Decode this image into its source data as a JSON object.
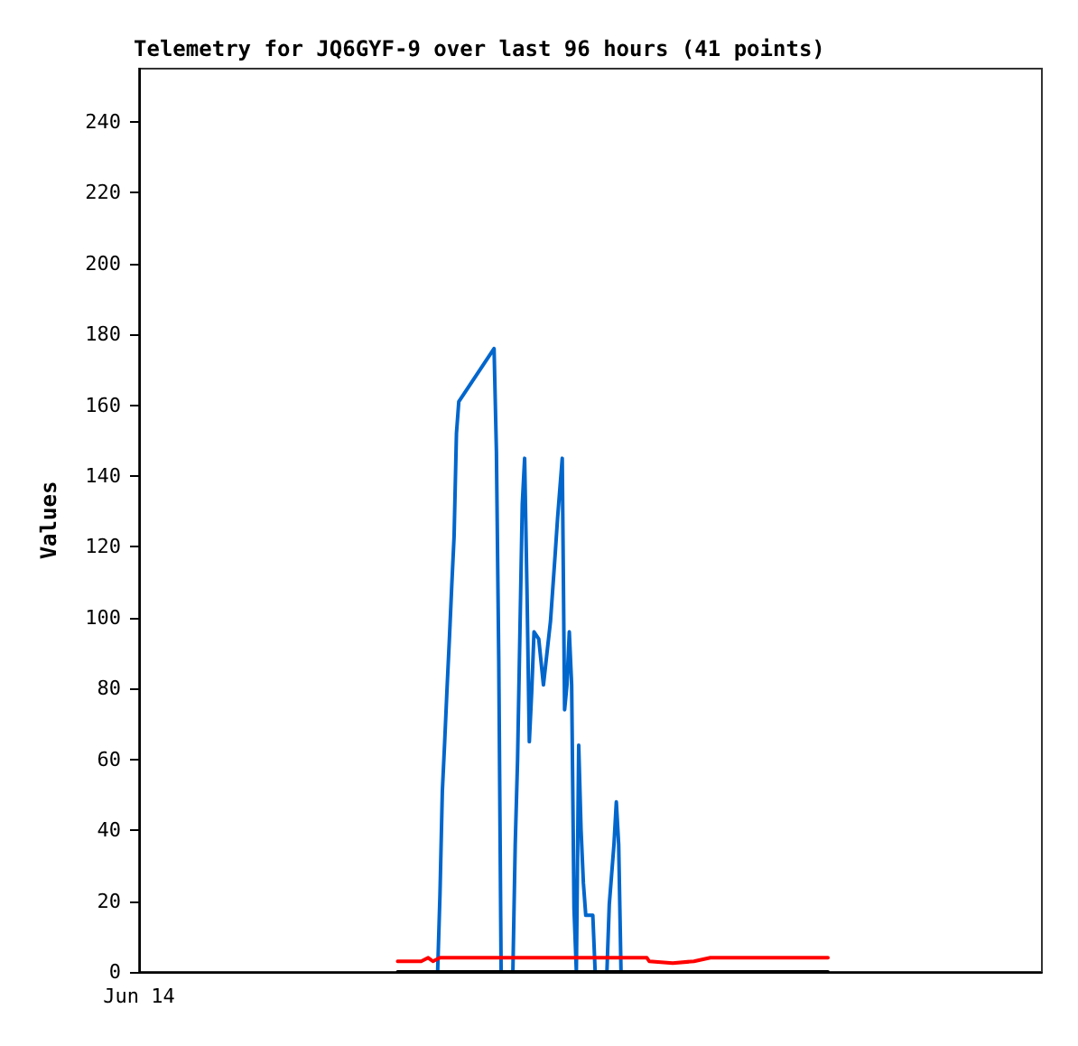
{
  "chart_data": {
    "type": "line",
    "title": "Telemetry for JQ6GYF-9 over last 96 hours (41 points)",
    "ylabel": "Values",
    "ylim": [
      0,
      255
    ],
    "yticks": [
      0,
      20,
      40,
      60,
      80,
      100,
      120,
      140,
      160,
      180,
      200,
      220,
      240
    ],
    "grid": false,
    "marker": "none",
    "line_style": "solid",
    "categories": [
      "Jun 14",
      null,
      null,
      null,
      null,
      null,
      null,
      null,
      null,
      null,
      null,
      null,
      null,
      null,
      null,
      null,
      null,
      null,
      null,
      null,
      null,
      null,
      null,
      null,
      null,
      null,
      null,
      null,
      null,
      null,
      null,
      null,
      null,
      null,
      null,
      null,
      null,
      null,
      null,
      null,
      null,
      null,
      null,
      null,
      null,
      null,
      null,
      null,
      null,
      null,
      null,
      null,
      null,
      null,
      null,
      null,
      null,
      null,
      null,
      null,
      null,
      null,
      null,
      null,
      null,
      null,
      null,
      null,
      null,
      null,
      null,
      null,
      null,
      null,
      null,
      null,
      null,
      null,
      null,
      null,
      null,
      null,
      null,
      null,
      null,
      null,
      null,
      null,
      null,
      null,
      null,
      null,
      null,
      null,
      null,
      null,
      null,
      null,
      null,
      null,
      null,
      null,
      null,
      null,
      null,
      null,
      null,
      null,
      null,
      null,
      null,
      null,
      null,
      null,
      null,
      null,
      null,
      null,
      null,
      null,
      null,
      null,
      null,
      null,
      null,
      null,
      null,
      null,
      null,
      null,
      null,
      null,
      null,
      null,
      null,
      null,
      null,
      null,
      null,
      null,
      null,
      null,
      null,
      null,
      null,
      null,
      null,
      null,
      null,
      null,
      null,
      null,
      null,
      null,
      null,
      null,
      null,
      null,
      null,
      null,
      null,
      null,
      null,
      null,
      null,
      null,
      null,
      null,
      null,
      null,
      null,
      null,
      null,
      null,
      null,
      null,
      null,
      null,
      null,
      null,
      null,
      null,
      null,
      null,
      null,
      null,
      null,
      null,
      null,
      null,
      null,
      null,
      null,
      null,
      null,
      null,
      null,
      null,
      null,
      null,
      null,
      null,
      null,
      null,
      null,
      null,
      null,
      null,
      null,
      null,
      null,
      null,
      null,
      null,
      null,
      null,
      null,
      null,
      null,
      null,
      null,
      null,
      null,
      null,
      null,
      null,
      null,
      null,
      null,
      null,
      null,
      null,
      null,
      null,
      null,
      null,
      null,
      null,
      null,
      null,
      null,
      null,
      null,
      null,
      null,
      null,
      null,
      null,
      null,
      null,
      null,
      null,
      null,
      null,
      null,
      null,
      null,
      null,
      null,
      null,
      null,
      null,
      null,
      null,
      null,
      null,
      null,
      null,
      null,
      null,
      null,
      null,
      null,
      null,
      null,
      null,
      null,
      null,
      null,
      null,
      null,
      null,
      null,
      null,
      null,
      null,
      null,
      null,
      null,
      null,
      null,
      null,
      null,
      null,
      null,
      null,
      null,
      null,
      null,
      null,
      null,
      null,
      null,
      null,
      null,
      null,
      null,
      null,
      null,
      null,
      null,
      null,
      null,
      null,
      null,
      null,
      null,
      null,
      null,
      null,
      null,
      null,
      null,
      null,
      null,
      null,
      null,
      null,
      null,
      null,
      null,
      null,
      null,
      null,
      null,
      null,
      null,
      null,
      null,
      null,
      null,
      null,
      null,
      null,
      null,
      null,
      null,
      null,
      null,
      null,
      null,
      null,
      null,
      null,
      null,
      null,
      null,
      null,
      null,
      null,
      null,
      null,
      null,
      null,
      null,
      null,
      null,
      null,
      null,
      null,
      null,
      null,
      null,
      null,
      null,
      null,
      null,
      null,
      null,
      null,
      null,
      null,
      null,
      null,
      null
    ],
    "series": [
      {
        "color": "#0066cc",
        "values": [
          null,
          null,
          null,
          null,
          null,
          null,
          null,
          null,
          null,
          null,
          null,
          null,
          null,
          null,
          null,
          null,
          null,
          null,
          null,
          null,
          null,
          null,
          null,
          null,
          null,
          null,
          null,
          null,
          null,
          null,
          null,
          null,
          null,
          null,
          null,
          null,
          null,
          null,
          null,
          null,
          null,
          null,
          null,
          null,
          null,
          null,
          null,
          null,
          null,
          null,
          null,
          null,
          null,
          null,
          null,
          null,
          null,
          null,
          null,
          null,
          null,
          null,
          null,
          null,
          null,
          null,
          null,
          null,
          null,
          null,
          null,
          null,
          null,
          null,
          null,
          null,
          null,
          null,
          null,
          null,
          null,
          null,
          null,
          null,
          null,
          null,
          null,
          null,
          null,
          null,
          null,
          null,
          null,
          null,
          null,
          null,
          null,
          null,
          null,
          null,
          null,
          null,
          null,
          null,
          null,
          null,
          null,
          null,
          null,
          null,
          null,
          null,
          null,
          null,
          null,
          null,
          null,
          null,
          null,
          null,
          null,
          null,
          null,
          null,
          null,
          null,
          null,
          0,
          22,
          51,
          65,
          80,
          94,
          109,
          123,
          152,
          161,
          null,
          null,
          null,
          null,
          null,
          null,
          null,
          null,
          null,
          null,
          null,
          null,
          null,
          null,
          176,
          147,
          88,
          0,
          null,
          null,
          null,
          null,
          0,
          36,
          60,
          null,
          132,
          145,
          108,
          65,
          79,
          96,
          null,
          94,
          null,
          81,
          87,
          null,
          99,
          null,
          118,
          128,
          null,
          145,
          74,
          81,
          96,
          81,
          18,
          0,
          64,
          40,
          25,
          16,
          null,
          null,
          16,
          0,
          null,
          null,
          null,
          null,
          0,
          19,
          null,
          36,
          48,
          36,
          0,
          null,
          null,
          null,
          null,
          null,
          null,
          null,
          null,
          null,
          null,
          null,
          null,
          null,
          null,
          null,
          null,
          null,
          null,
          null,
          null,
          null,
          null,
          null,
          null,
          null,
          null,
          null,
          null,
          null,
          null,
          null,
          null,
          null,
          null,
          null,
          null,
          null,
          null,
          null,
          null,
          null,
          null,
          null,
          null,
          null,
          null,
          null,
          null,
          null,
          null,
          null,
          null,
          null,
          null,
          null,
          null,
          null,
          null,
          null,
          null,
          null,
          null,
          null,
          null,
          null,
          null,
          null,
          null,
          null,
          null,
          null,
          null,
          null,
          null,
          null,
          null,
          null,
          null,
          null,
          null,
          null,
          null,
          null,
          null,
          null,
          null,
          null,
          null,
          null,
          null,
          null,
          null,
          null,
          null,
          null,
          null,
          null,
          null,
          null,
          null,
          null,
          null,
          null,
          null,
          null,
          null,
          null,
          null,
          null,
          null,
          null,
          null,
          null,
          null,
          null,
          null,
          null,
          null,
          null,
          null,
          null,
          null,
          null,
          null,
          null,
          null,
          null,
          null,
          null,
          null,
          null,
          null,
          null,
          null,
          null,
          null,
          null,
          null,
          null,
          null,
          null,
          null,
          null,
          null,
          null,
          null,
          null,
          null,
          null,
          null,
          null,
          null,
          null,
          null,
          null,
          null,
          null,
          null,
          null,
          null,
          null,
          null,
          null,
          null,
          null,
          null,
          null,
          null,
          null,
          null,
          null,
          null,
          null,
          null,
          null,
          null,
          null,
          null,
          null
        ]
      },
      {
        "color": "#ff0000",
        "values": [
          null,
          null,
          null,
          null,
          null,
          null,
          null,
          null,
          null,
          null,
          null,
          null,
          null,
          null,
          null,
          null,
          null,
          null,
          null,
          null,
          null,
          null,
          null,
          null,
          null,
          null,
          null,
          null,
          null,
          null,
          null,
          null,
          null,
          null,
          null,
          null,
          null,
          null,
          null,
          null,
          null,
          null,
          null,
          null,
          null,
          null,
          null,
          null,
          null,
          null,
          null,
          null,
          null,
          null,
          null,
          null,
          null,
          null,
          null,
          null,
          null,
          null,
          null,
          null,
          null,
          null,
          null,
          null,
          null,
          null,
          null,
          null,
          null,
          null,
          null,
          null,
          null,
          null,
          null,
          null,
          null,
          null,
          null,
          null,
          null,
          null,
          null,
          null,
          null,
          null,
          null,
          null,
          null,
          null,
          null,
          null,
          null,
          null,
          null,
          null,
          null,
          null,
          null,
          null,
          null,
          null,
          null,
          null,
          null,
          null,
          3,
          null,
          null,
          null,
          null,
          null,
          null,
          null,
          null,
          null,
          3,
          null,
          null,
          4,
          null,
          3,
          null,
          null,
          4,
          null,
          null,
          null,
          null,
          null,
          null,
          null,
          null,
          null,
          null,
          null,
          null,
          null,
          null,
          null,
          null,
          null,
          null,
          null,
          null,
          null,
          null,
          null,
          null,
          null,
          null,
          null,
          null,
          null,
          null,
          null,
          null,
          null,
          null,
          null,
          null,
          null,
          null,
          null,
          null,
          null,
          null,
          null,
          null,
          null,
          null,
          null,
          null,
          null,
          null,
          null,
          null,
          null,
          null,
          null,
          null,
          null,
          null,
          null,
          null,
          null,
          null,
          null,
          null,
          null,
          null,
          null,
          null,
          null,
          null,
          null,
          null,
          null,
          null,
          null,
          null,
          null,
          null,
          null,
          null,
          null,
          null,
          null,
          null,
          null,
          null,
          null,
          4,
          3,
          null,
          null,
          null,
          null,
          null,
          null,
          null,
          null,
          null,
          2.5,
          null,
          null,
          null,
          null,
          null,
          null,
          null,
          null,
          3,
          null,
          null,
          null,
          null,
          null,
          null,
          4,
          null,
          null,
          null,
          null,
          null,
          null,
          null,
          null,
          null,
          null,
          null,
          null,
          null,
          null,
          null,
          null,
          null,
          null,
          null,
          null,
          null,
          null,
          null,
          null,
          null,
          null,
          null,
          null,
          null,
          null,
          null,
          null,
          null,
          null,
          null,
          null,
          null,
          null,
          null,
          null,
          null,
          null,
          null,
          null,
          null,
          null,
          null,
          null,
          null,
          4,
          null,
          null,
          null,
          null,
          null,
          null,
          null,
          null,
          null,
          null,
          null,
          null,
          null,
          null,
          null,
          null,
          null,
          null,
          null,
          null,
          null,
          null,
          null,
          null,
          null,
          null,
          null,
          null,
          null,
          null,
          null,
          null,
          null,
          null,
          null,
          null,
          null,
          null,
          null,
          null,
          null,
          null,
          null,
          null,
          null,
          null,
          null,
          null,
          null,
          null,
          null,
          null,
          null,
          null,
          null,
          null,
          null,
          null,
          null,
          null,
          null,
          null,
          null,
          null,
          null,
          null,
          null,
          null,
          null,
          null,
          null,
          null,
          null,
          null,
          null,
          null,
          null,
          null,
          null,
          null,
          null,
          null,
          null,
          null,
          null,
          null,
          null,
          null,
          null,
          null,
          null
        ]
      },
      {
        "color": "#000000",
        "values": [
          null,
          null,
          null,
          null,
          null,
          null,
          null,
          null,
          null,
          null,
          null,
          null,
          null,
          null,
          null,
          null,
          null,
          null,
          null,
          null,
          null,
          null,
          null,
          null,
          null,
          null,
          null,
          null,
          null,
          null,
          null,
          null,
          null,
          null,
          null,
          null,
          null,
          null,
          null,
          null,
          null,
          null,
          null,
          null,
          null,
          null,
          null,
          null,
          null,
          null,
          null,
          null,
          null,
          null,
          null,
          null,
          null,
          null,
          null,
          null,
          null,
          null,
          null,
          null,
          null,
          null,
          null,
          null,
          null,
          null,
          null,
          null,
          null,
          null,
          null,
          null,
          null,
          null,
          null,
          null,
          null,
          null,
          null,
          null,
          null,
          null,
          null,
          null,
          null,
          null,
          null,
          null,
          null,
          null,
          null,
          null,
          null,
          null,
          null,
          null,
          null,
          null,
          null,
          null,
          null,
          null,
          null,
          null,
          null,
          null,
          0,
          null,
          null,
          null,
          null,
          null,
          null,
          null,
          null,
          null,
          null,
          null,
          null,
          null,
          null,
          null,
          null,
          null,
          null,
          null,
          null,
          null,
          null,
          null,
          null,
          null,
          null,
          null,
          null,
          null,
          null,
          null,
          null,
          null,
          null,
          null,
          null,
          null,
          null,
          null,
          null,
          null,
          null,
          null,
          null,
          null,
          null,
          null,
          null,
          null,
          null,
          null,
          null,
          null,
          null,
          null,
          null,
          null,
          null,
          null,
          null,
          null,
          null,
          null,
          null,
          null,
          null,
          null,
          null,
          null,
          null,
          null,
          null,
          null,
          null,
          null,
          null,
          null,
          null,
          null,
          null,
          null,
          null,
          null,
          null,
          null,
          null,
          null,
          null,
          null,
          null,
          null,
          null,
          null,
          null,
          null,
          null,
          null,
          null,
          null,
          null,
          null,
          null,
          null,
          null,
          null,
          null,
          null,
          null,
          null,
          null,
          null,
          null,
          null,
          null,
          null,
          null,
          null,
          null,
          null,
          null,
          null,
          null,
          null,
          null,
          null,
          null,
          null,
          null,
          null,
          null,
          null,
          null,
          null,
          null,
          null,
          null,
          null,
          null,
          null,
          null,
          null,
          null,
          null,
          null,
          null,
          null,
          null,
          null,
          null,
          null,
          null,
          null,
          null,
          null,
          null,
          null,
          null,
          null,
          null,
          null,
          null,
          null,
          null,
          null,
          null,
          null,
          null,
          null,
          null,
          null,
          null,
          null,
          null,
          null,
          null,
          null,
          null,
          null,
          null,
          null,
          null,
          null,
          0,
          null,
          null,
          null,
          null,
          null,
          null,
          null,
          null,
          null,
          null,
          null,
          null,
          null,
          null,
          null,
          null,
          null,
          null,
          null,
          null,
          null,
          null,
          null,
          null,
          null,
          null,
          null,
          null,
          null,
          null,
          null,
          null,
          null,
          null,
          null,
          null,
          null,
          null,
          null,
          null,
          null,
          null,
          null,
          null,
          null,
          null,
          null,
          null,
          null,
          null,
          null,
          null,
          null,
          null,
          null,
          null,
          null,
          null,
          null,
          null,
          null,
          null,
          null,
          null,
          null,
          null,
          null,
          null,
          null,
          null,
          null,
          null,
          null,
          null,
          null,
          null,
          null,
          null,
          null,
          null,
          null,
          null,
          null,
          null,
          null,
          null,
          null,
          null,
          null,
          null,
          null
        ]
      }
    ]
  }
}
